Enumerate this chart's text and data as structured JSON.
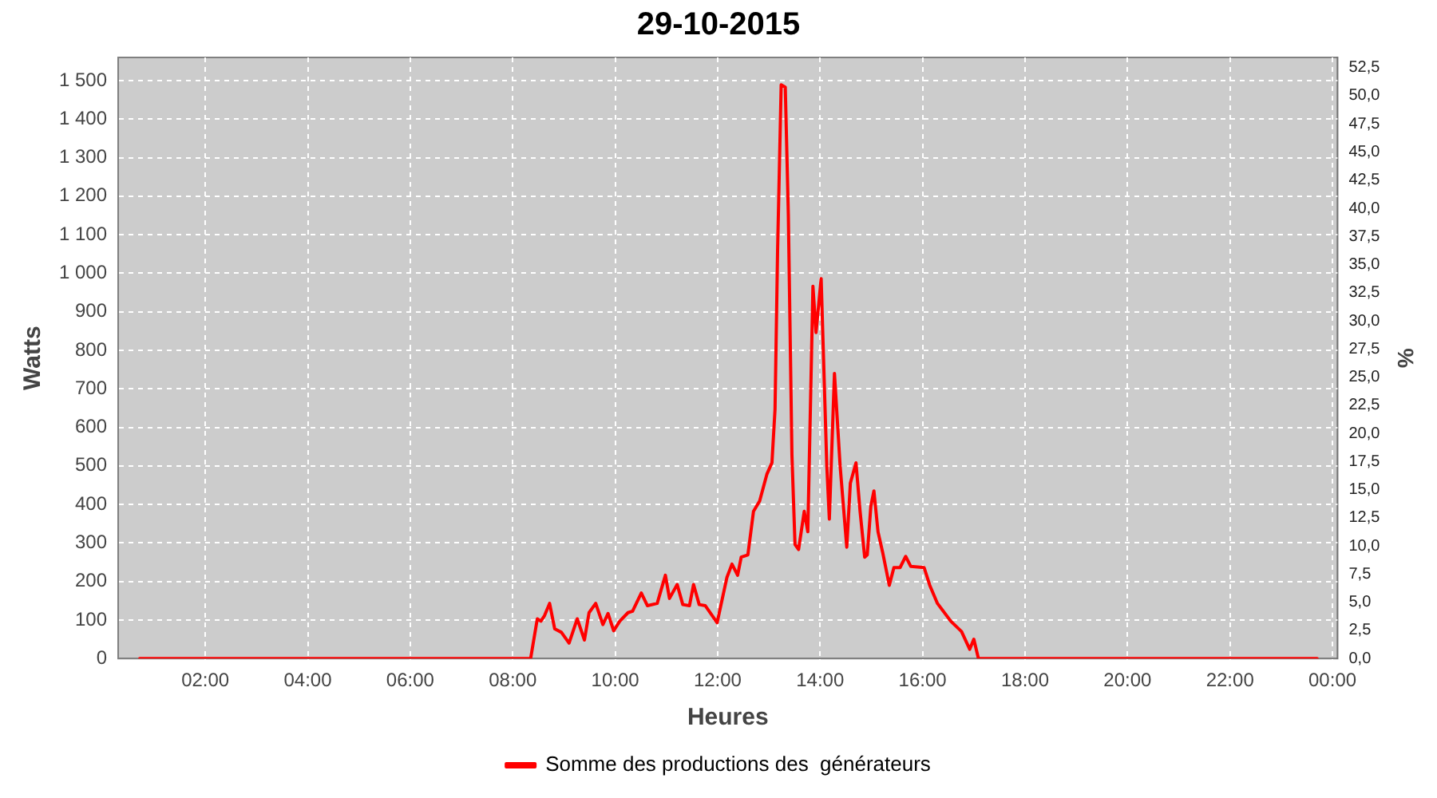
{
  "chart_data": {
    "type": "line",
    "title": "29-10-2015",
    "xlabel": "Heures",
    "ylabel": "Watts",
    "y2label": "%",
    "xlim": [
      0.3,
      24.1
    ],
    "xticks": [
      {
        "value": 2,
        "label": "02:00"
      },
      {
        "value": 4,
        "label": "04:00"
      },
      {
        "value": 6,
        "label": "06:00"
      },
      {
        "value": 8,
        "label": "08:00"
      },
      {
        "value": 10,
        "label": "10:00"
      },
      {
        "value": 12,
        "label": "12:00"
      },
      {
        "value": 14,
        "label": "14:00"
      },
      {
        "value": 16,
        "label": "16:00"
      },
      {
        "value": 18,
        "label": "18:00"
      },
      {
        "value": 20,
        "label": "20:00"
      },
      {
        "value": 22,
        "label": "22:00"
      },
      {
        "value": 24,
        "label": "00:00"
      }
    ],
    "ylim": [
      0,
      1560
    ],
    "yticks": [
      0,
      100,
      200,
      300,
      400,
      500,
      600,
      700,
      800,
      900,
      {
        "value": 1000,
        "label": "1 000"
      },
      {
        "value": 1100,
        "label": "1 100"
      },
      {
        "value": 1200,
        "label": "1 200"
      },
      {
        "value": 1300,
        "label": "1 300"
      },
      {
        "value": 1400,
        "label": "1 400"
      },
      {
        "value": 1500,
        "label": "1 500"
      }
    ],
    "y2lim": [
      0,
      53.4
    ],
    "y2ticks": [
      {
        "value": 0,
        "label": "0,0"
      },
      {
        "value": 2.5,
        "label": "2,5"
      },
      {
        "value": 5,
        "label": "5,0"
      },
      {
        "value": 7.5,
        "label": "7,5"
      },
      {
        "value": 10,
        "label": "10,0"
      },
      {
        "value": 12.5,
        "label": "12,5"
      },
      {
        "value": 15,
        "label": "15,0"
      },
      {
        "value": 17.5,
        "label": "17,5"
      },
      {
        "value": 20,
        "label": "20,0"
      },
      {
        "value": 22.5,
        "label": "22,5"
      },
      {
        "value": 25,
        "label": "25,0"
      },
      {
        "value": 27.5,
        "label": "27,5"
      },
      {
        "value": 30,
        "label": "30,0"
      },
      {
        "value": 32.5,
        "label": "32,5"
      },
      {
        "value": 35,
        "label": "35,0"
      },
      {
        "value": 37.5,
        "label": "37,5"
      },
      {
        "value": 40,
        "label": "40,0"
      },
      {
        "value": 42.5,
        "label": "42,5"
      },
      {
        "value": 45,
        "label": "45,0"
      },
      {
        "value": 47.5,
        "label": "47,5"
      },
      {
        "value": 50,
        "label": "50,0"
      },
      {
        "value": 52.5,
        "label": "52,5"
      }
    ],
    "grid": true,
    "legend": "bottom",
    "series": [
      {
        "name": "Somme des productions des  générateurs",
        "color": "#ff0000",
        "x": [
          0.72,
          8.35,
          8.48,
          8.55,
          8.62,
          8.72,
          8.82,
          8.95,
          9.1,
          9.26,
          9.4,
          9.49,
          9.62,
          9.76,
          9.86,
          9.97,
          10.09,
          10.25,
          10.34,
          10.51,
          10.63,
          10.82,
          10.98,
          11.06,
          11.21,
          11.32,
          11.45,
          11.53,
          11.64,
          11.76,
          11.99,
          12.18,
          12.28,
          12.39,
          12.46,
          12.59,
          12.7,
          12.82,
          12.96,
          13.06,
          13.12,
          13.17,
          13.24,
          13.32,
          13.38,
          13.45,
          13.51,
          13.58,
          13.69,
          13.76,
          13.86,
          13.92,
          14.02,
          14.13,
          14.18,
          14.28,
          14.39,
          14.52,
          14.59,
          14.7,
          14.78,
          14.87,
          14.92,
          14.99,
          15.05,
          15.13,
          15.22,
          15.35,
          15.44,
          15.56,
          15.67,
          15.77,
          16.03,
          16.14,
          16.29,
          16.55,
          16.76,
          16.92,
          17.0,
          17.09,
          23.7
        ],
        "values": [
          0,
          0,
          103,
          97,
          111,
          143,
          77,
          68,
          40,
          103,
          48,
          119,
          143,
          88,
          117,
          72,
          97,
          119,
          123,
          170,
          137,
          143,
          216,
          156,
          192,
          140,
          137,
          192,
          140,
          137,
          93,
          210,
          245,
          216,
          263,
          269,
          382,
          409,
          478,
          508,
          647,
          1058,
          1489,
          1483,
          1151,
          528,
          296,
          283,
          382,
          329,
          966,
          846,
          986,
          501,
          362,
          740,
          501,
          289,
          455,
          508,
          382,
          263,
          269,
          395,
          435,
          329,
          276,
          190,
          236,
          236,
          265,
          239,
          236,
          190,
          143,
          97,
          70,
          24,
          50,
          0,
          0
        ]
      }
    ]
  }
}
